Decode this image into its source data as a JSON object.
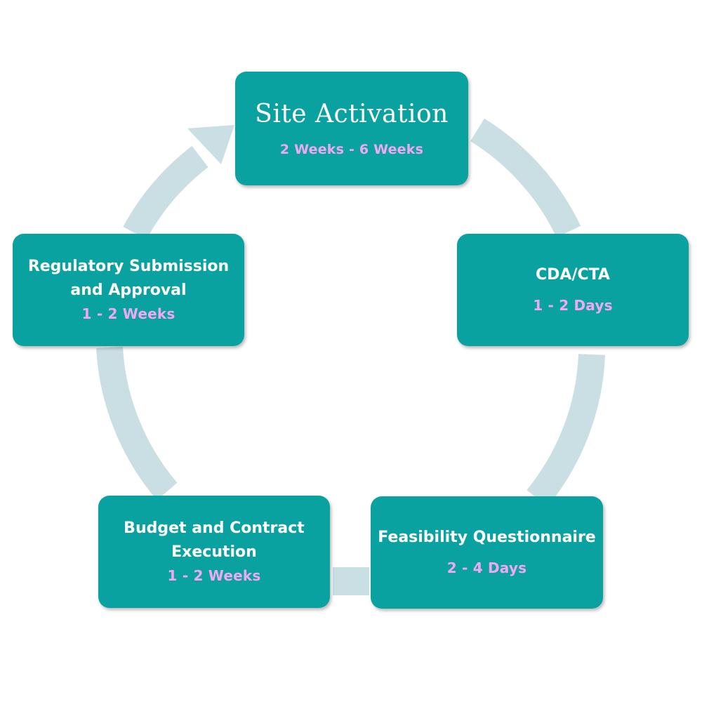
{
  "colors": {
    "node_fill": "#0aa2a0",
    "title_text": "#ffffff",
    "duration_text": "#f1a8f2",
    "cycle_ring": "#c9dfe3"
  },
  "nodes": {
    "site_activation": {
      "title": "Site Activation",
      "duration": "2 Weeks - 6 Weeks"
    },
    "cda_cta": {
      "title": "CDA/CTA",
      "duration": "1 - 2 Days"
    },
    "feasibility": {
      "title": "Feasibility Questionnaire",
      "duration": "2 - 4 Days"
    },
    "budget": {
      "title_line1": "Budget and Contract",
      "title_line2": "Execution",
      "duration": "1 - 2 Weeks"
    },
    "regulatory": {
      "title_line1": "Regulatory Submission",
      "title_line2": "and Approval",
      "duration": "1 - 2 Weeks"
    }
  }
}
